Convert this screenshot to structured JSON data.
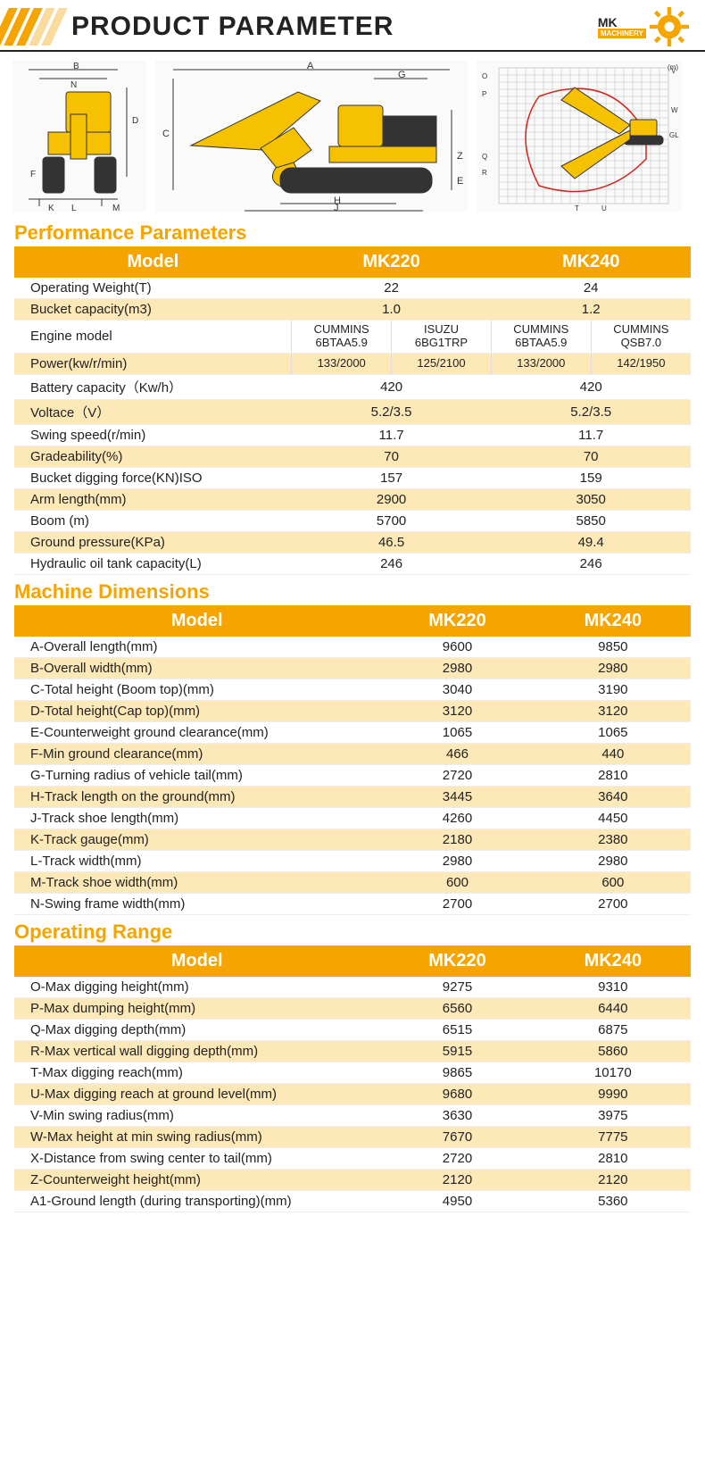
{
  "header": {
    "title": "PRODUCT PARAMETER",
    "logo_text": "MK",
    "logo_sub": "MACHINERY"
  },
  "colors": {
    "accent": "#f5a400",
    "alt_row": "#fde8b8",
    "header_text": "#ffffff",
    "body_text": "#222222",
    "border": "#eeeeee",
    "machine_yellow": "#f6c100",
    "machine_dark": "#333333"
  },
  "section_titles": {
    "perf": "Performance Parameters",
    "dims": "Machine Dimensions",
    "range": "Operating Range"
  },
  "diagrams": {
    "front": {
      "labels": [
        "B",
        "N",
        "D",
        "L",
        "K",
        "M",
        "F"
      ]
    },
    "side": {
      "labels": [
        "A",
        "G",
        "C",
        "H",
        "J",
        "E",
        "Z"
      ]
    },
    "reach": {
      "x_ticks": [
        "11",
        "10",
        "9",
        "8",
        "7",
        "6",
        "5",
        "4",
        "3",
        "2",
        "1",
        "0"
      ],
      "y_ticks": [
        "-8",
        "-7",
        "-6",
        "-5",
        "-4",
        "-3",
        "-2",
        "-1",
        "0",
        "1",
        "2",
        "3",
        "4",
        "5",
        "6",
        "7",
        "8",
        "9",
        "10"
      ],
      "labels": [
        "O",
        "P",
        "Q",
        "R",
        "T",
        "U",
        "V",
        "W",
        "GL",
        "(m)"
      ]
    }
  },
  "perf": {
    "header": [
      "Model",
      "MK220",
      "MK240"
    ],
    "rows": [
      {
        "label": "Operating Weight(T)",
        "v1": "22",
        "v2": "24",
        "alt": false
      },
      {
        "label": "Bucket capacity(m3)",
        "v1": "1.0",
        "v2": "1.2",
        "alt": true
      },
      {
        "label": "Engine model",
        "split": true,
        "c1": "CUMMINS 6BTAA5.9",
        "c2": "ISUZU 6BG1TRP",
        "c3": "CUMMINS 6BTAA5.9",
        "c4": "CUMMINS QSB7.0",
        "alt": false
      },
      {
        "label": "Power(kw/r/min)",
        "split": true,
        "c1": "133/2000",
        "c2": "125/2100",
        "c3": "133/2000",
        "c4": "142/1950",
        "alt": true
      },
      {
        "label": "Battery capacity（Kw/h）",
        "v1": "420",
        "v2": "420",
        "alt": false
      },
      {
        "label": "Voltace（V）",
        "v1": "5.2/3.5",
        "v2": "5.2/3.5",
        "alt": true
      },
      {
        "label": "Swing speed(r/min)",
        "v1": "11.7",
        "v2": "11.7",
        "alt": false
      },
      {
        "label": "Gradeability(%)",
        "v1": "70",
        "v2": "70",
        "alt": true
      },
      {
        "label": "Bucket digging force(KN)ISO",
        "v1": "157",
        "v2": "159",
        "alt": false
      },
      {
        "label": "Arm length(mm)",
        "v1": "2900",
        "v2": "3050",
        "alt": true
      },
      {
        "label": "Boom (m)",
        "v1": "5700",
        "v2": "5850",
        "alt": false
      },
      {
        "label": "Ground pressure(KPa)",
        "v1": "46.5",
        "v2": "49.4",
        "alt": true
      },
      {
        "label": "Hydraulic oil tank capacity(L)",
        "v1": "246",
        "v2": "246",
        "alt": false
      }
    ]
  },
  "dims": {
    "header": [
      "Model",
      "MK220",
      "MK240"
    ],
    "rows": [
      {
        "label": "A-Overall length(mm)",
        "v1": "9600",
        "v2": "9850",
        "alt": false
      },
      {
        "label": "B-Overall width(mm)",
        "v1": "2980",
        "v2": "2980",
        "alt": true
      },
      {
        "label": "C-Total height (Boom top)(mm)",
        "v1": "3040",
        "v2": "3190",
        "alt": false
      },
      {
        "label": "D-Total height(Cap top)(mm)",
        "v1": "3120",
        "v2": "3120",
        "alt": true
      },
      {
        "label": "E-Counterweight ground clearance(mm)",
        "v1": "1065",
        "v2": "1065",
        "alt": false
      },
      {
        "label": "F-Min ground clearance(mm)",
        "v1": "466",
        "v2": "440",
        "alt": true
      },
      {
        "label": "G-Turning radius of vehicle tail(mm)",
        "v1": "2720",
        "v2": "2810",
        "alt": false
      },
      {
        "label": "H-Track length on the ground(mm)",
        "v1": "3445",
        "v2": "3640",
        "alt": true
      },
      {
        "label": "J-Track shoe length(mm)",
        "v1": "4260",
        "v2": "4450",
        "alt": false
      },
      {
        "label": "K-Track gauge(mm)",
        "v1": "2180",
        "v2": "2380",
        "alt": true
      },
      {
        "label": "L-Track width(mm)",
        "v1": "2980",
        "v2": "2980",
        "alt": false
      },
      {
        "label": "M-Track shoe width(mm)",
        "v1": "600",
        "v2": "600",
        "alt": true
      },
      {
        "label": "N-Swing frame width(mm)",
        "v1": "2700",
        "v2": "2700",
        "alt": false
      }
    ]
  },
  "range": {
    "header": [
      "Model",
      "MK220",
      "MK240"
    ],
    "rows": [
      {
        "label": "O-Max digging height(mm)",
        "v1": "9275",
        "v2": "9310",
        "alt": false
      },
      {
        "label": "P-Max dumping height(mm)",
        "v1": "6560",
        "v2": "6440",
        "alt": true
      },
      {
        "label": "Q-Max digging depth(mm)",
        "v1": "6515",
        "v2": "6875",
        "alt": false
      },
      {
        "label": "R-Max vertical wall digging depth(mm)",
        "v1": "5915",
        "v2": "5860",
        "alt": true
      },
      {
        "label": "T-Max digging reach(mm)",
        "v1": "9865",
        "v2": "10170",
        "alt": false
      },
      {
        "label": "U-Max digging reach at ground level(mm)",
        "v1": "9680",
        "v2": "9990",
        "alt": true
      },
      {
        "label": "V-Min swing radius(mm)",
        "v1": "3630",
        "v2": "3975",
        "alt": false
      },
      {
        "label": "W-Max height at min swing radius(mm)",
        "v1": "7670",
        "v2": "7775",
        "alt": true
      },
      {
        "label": "X-Distance from swing center to tail(mm)",
        "v1": "2720",
        "v2": "2810",
        "alt": false
      },
      {
        "label": "Z-Counterweight height(mm)",
        "v1": "2120",
        "v2": "2120",
        "alt": true
      },
      {
        "label": "A1-Ground length (during transporting)(mm)",
        "v1": "4950",
        "v2": "5360",
        "alt": false
      }
    ]
  }
}
